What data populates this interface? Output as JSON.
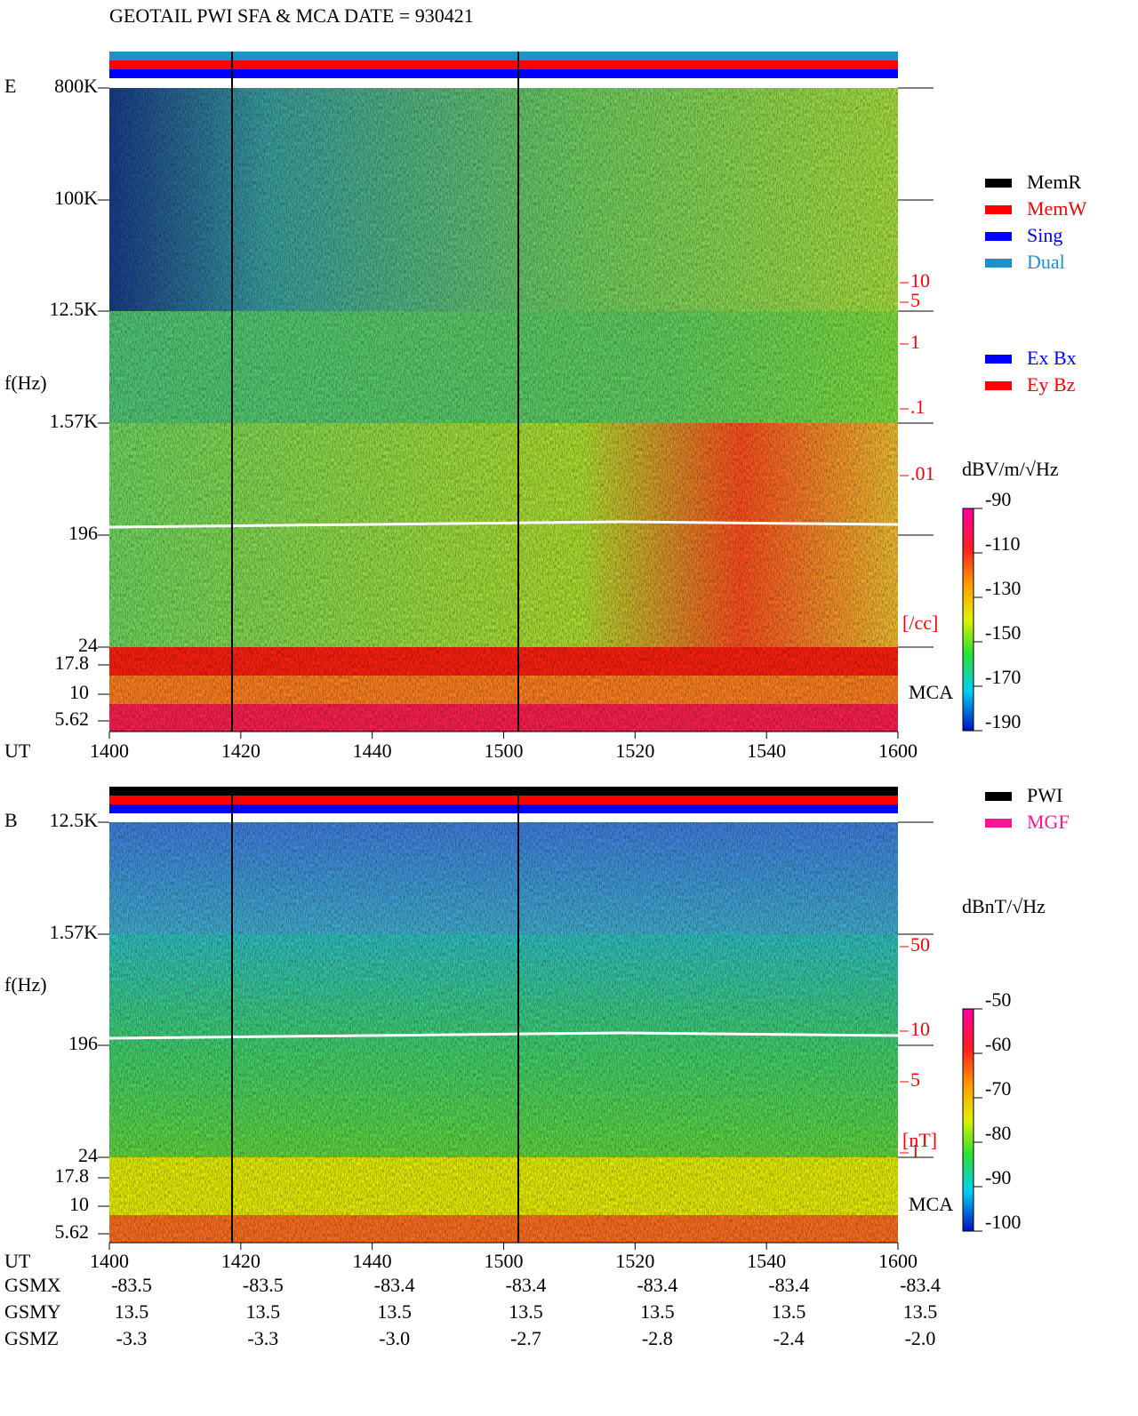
{
  "title": "GEOTAIL  PWI SFA & MCA   DATE = 930421",
  "panels": [
    {
      "label": "E",
      "y_label": "f(Hz)",
      "freq_ticks": [
        "800K",
        "100K",
        "12.5K",
        "1.57K",
        "196",
        "24"
      ],
      "mca_ticks": [
        "17.8",
        "10",
        "5.62"
      ],
      "mca_label": "MCA",
      "x_label": "UT",
      "x_ticks": [
        "1400",
        "1420",
        "1440",
        "1500",
        "1520",
        "1540",
        "1600"
      ],
      "right_ticks": [
        "10",
        "5",
        "1",
        ".1",
        ".01"
      ],
      "right_unit": "[/cc]",
      "legends": [
        [
          {
            "name": "MemR",
            "color": "#000000"
          },
          {
            "name": "MemW",
            "color": "#ff0000"
          },
          {
            "name": "Sing",
            "color": "#0000ff"
          },
          {
            "name": "Dual",
            "color": "#2090c8"
          }
        ],
        [
          {
            "name": "Ex Bx",
            "color": "#0000ff"
          },
          {
            "name": "Ey Bz",
            "color": "#ff0000"
          }
        ]
      ],
      "colorbar_label": "dBV/m/√Hz",
      "colorbar_ticks": [
        -90,
        -110,
        -130,
        -150,
        -170,
        -190
      ]
    },
    {
      "label": "B",
      "y_label": "f(Hz)",
      "freq_ticks": [
        "12.5K",
        "1.57K",
        "196",
        "24"
      ],
      "mca_ticks": [
        "17.8",
        "10",
        "5.62"
      ],
      "mca_label": "MCA",
      "x_label": "UT",
      "x_ticks": [
        "1400",
        "1420",
        "1440",
        "1500",
        "1520",
        "1540",
        "1600"
      ],
      "right_ticks": [
        "50",
        "10",
        "5",
        "1"
      ],
      "right_unit": "[nT]",
      "legends": [
        [
          {
            "name": "PWI",
            "color": "#000000"
          },
          {
            "name": "MGF",
            "color": "#ff1493"
          }
        ]
      ],
      "colorbar_label": "dBnT/√Hz",
      "colorbar_ticks": [
        -50,
        -60,
        -70,
        -80,
        -90,
        -100
      ]
    }
  ],
  "orbit": [
    {
      "name": "GSMX",
      "values": [
        "-83.5",
        "-83.5",
        "-83.4",
        "-83.4",
        "-83.4",
        "-83.4",
        "-83.4"
      ]
    },
    {
      "name": "GSMY",
      "values": [
        "13.5",
        "13.5",
        "13.5",
        "13.5",
        "13.5",
        "13.5",
        "13.5"
      ]
    },
    {
      "name": "GSMZ",
      "values": [
        "-3.3",
        "-3.3",
        "-3.0",
        "-2.7",
        "-2.8",
        "-2.4",
        "-2.0"
      ]
    }
  ]
}
